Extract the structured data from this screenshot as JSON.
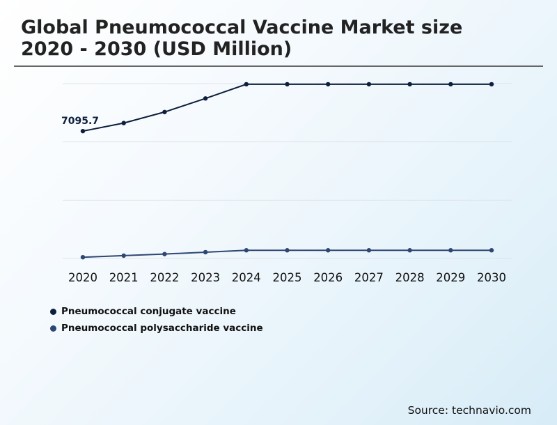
{
  "header": {
    "title_line1": "Global Pneumococcal Vaccine Market size",
    "title_line2": "2020 - 2030 (USD Million)"
  },
  "chart_data": {
    "type": "line",
    "categories": [
      "2020",
      "2021",
      "2022",
      "2023",
      "2024",
      "2025",
      "2026",
      "2027",
      "2028",
      "2029",
      "2030"
    ],
    "series": [
      {
        "name": "Pneumococcal conjugate vaccine",
        "color": "#0d1f3c",
        "values": [
          7095.7,
          7350,
          7700,
          8130,
          8580,
          8580,
          8580,
          8580,
          8580,
          8580,
          8580
        ]
      },
      {
        "name": "Pneumococcal polysaccharide vaccine",
        "color": "#2e4672",
        "values": [
          3100,
          3150,
          3200,
          3260,
          3320,
          3320,
          3320,
          3320,
          3320,
          3320,
          3320
        ]
      }
    ],
    "data_labels": [
      {
        "series": 0,
        "index": 0,
        "text": "7095.7"
      }
    ],
    "ylim": [
      3060,
      8600
    ],
    "grid": true,
    "title": "",
    "xlabel": "",
    "ylabel": "",
    "legend_position": "bottom-left"
  },
  "footer": {
    "source": "Source: technavio.com"
  }
}
